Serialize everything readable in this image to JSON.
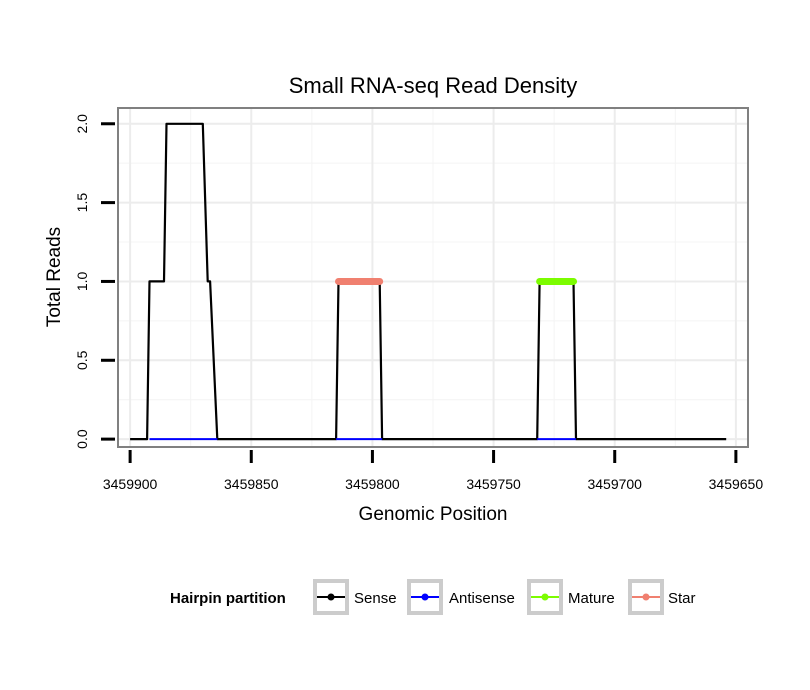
{
  "chart_data": {
    "type": "line",
    "title": "Small RNA-seq Read Density",
    "xlabel": "Genomic Position",
    "ylabel": "Total Reads",
    "x_reversed": true,
    "xlim": [
      3459905,
      3459645
    ],
    "ylim": [
      -0.05,
      2.1
    ],
    "x_ticks": [
      3459900,
      3459850,
      3459800,
      3459750,
      3459700,
      3459650
    ],
    "x_tick_labels": [
      "3459900",
      "3459850",
      "3459800",
      "3459750",
      "3459700",
      "3459650"
    ],
    "y_ticks": [
      0.0,
      0.5,
      1.0,
      1.5,
      2.0
    ],
    "y_tick_labels": [
      "0.0",
      "0.5",
      "1.0",
      "1.5",
      "2.0"
    ],
    "grid": true,
    "legend": {
      "title": "Hairpin partition",
      "position": "bottom",
      "entries": [
        "Sense",
        "Antisense",
        "Mature",
        "Star"
      ]
    },
    "series": [
      {
        "name": "Sense",
        "color": "#000000",
        "x": [
          3459900,
          3459893,
          3459892,
          3459886,
          3459885,
          3459870,
          3459868,
          3459867,
          3459864,
          3459815,
          3459814,
          3459797,
          3459796,
          3459732,
          3459731,
          3459717,
          3459716,
          3459654
        ],
        "y": [
          0,
          0,
          1,
          1,
          2,
          2,
          1,
          1,
          0,
          0,
          1,
          1,
          0,
          0,
          1,
          1,
          0,
          0
        ]
      },
      {
        "name": "Antisense",
        "color": "#0000ff",
        "x": [
          3459892,
          3459864,
          3459815,
          3459796,
          3459732,
          3459716
        ],
        "y": [
          0,
          0,
          null,
          0,
          0,
          null
        ],
        "segments": [
          [
            3459892,
            3459864
          ],
          [
            3459815,
            3459796
          ],
          [
            3459732,
            3459716
          ]
        ]
      },
      {
        "name": "Mature",
        "color": "#7cfc00",
        "segments": [
          [
            3459731,
            3459717
          ]
        ],
        "y": 1
      },
      {
        "name": "Star",
        "color": "#f08070",
        "segments": [
          [
            3459814,
            3459797
          ]
        ],
        "y": 1
      }
    ]
  }
}
